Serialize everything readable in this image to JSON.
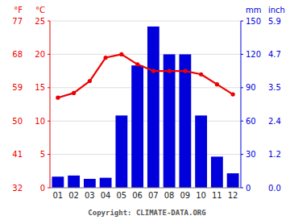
{
  "chart_data": {
    "type": "bar",
    "categories": [
      "01",
      "02",
      "03",
      "04",
      "05",
      "06",
      "07",
      "08",
      "09",
      "10",
      "11",
      "12"
    ],
    "series": [
      {
        "type": "bar",
        "axis": "y2",
        "color": "#0000dd",
        "values": [
          10,
          11,
          8,
          9,
          65,
          110,
          145,
          120,
          120,
          65,
          28,
          13
        ]
      },
      {
        "type": "line",
        "color": "#ee0000",
        "marker": "circle",
        "values": [
          13.5,
          14.2,
          16.0,
          19.5,
          20.0,
          18.5,
          17.5,
          17.5,
          17.5,
          17.0,
          15.5,
          14.0
        ]
      }
    ],
    "ylabel": "°C",
    "y2label": "mm",
    "ylim": [
      0,
      25
    ],
    "yticks": [
      0,
      5,
      10,
      15,
      20,
      25
    ],
    "y2lim": [
      0,
      150
    ],
    "y2ticks": [
      0,
      30,
      60,
      90,
      120,
      150
    ],
    "grid": true,
    "annotations": [
      {
        "text": "°F",
        "axis": "y"
      },
      {
        "text": "inch",
        "axis": "y2"
      },
      {
        "text": "32",
        "y": 0,
        "axis": "y"
      },
      {
        "text": "41",
        "y": 5,
        "axis": "y"
      },
      {
        "text": "50",
        "y": 10,
        "axis": "y"
      },
      {
        "text": "59",
        "y": 15,
        "axis": "y"
      },
      {
        "text": "68",
        "y": 20,
        "axis": "y"
      },
      {
        "text": "77",
        "y": 25,
        "axis": "y"
      },
      {
        "text": "0.0",
        "y": 0,
        "axis": "y2"
      },
      {
        "text": "1.2",
        "y": 30,
        "axis": "y2"
      },
      {
        "text": "2.4",
        "y": 60,
        "axis": "y2"
      },
      {
        "text": "3.5",
        "y": 90,
        "axis": "y2"
      },
      {
        "text": "4.7",
        "y": 120,
        "axis": "y2"
      },
      {
        "text": "5.9",
        "y": 150,
        "axis": "y2"
      },
      {
        "text": "Copyright: CLIMATE-DATA.ORG"
      }
    ]
  }
}
